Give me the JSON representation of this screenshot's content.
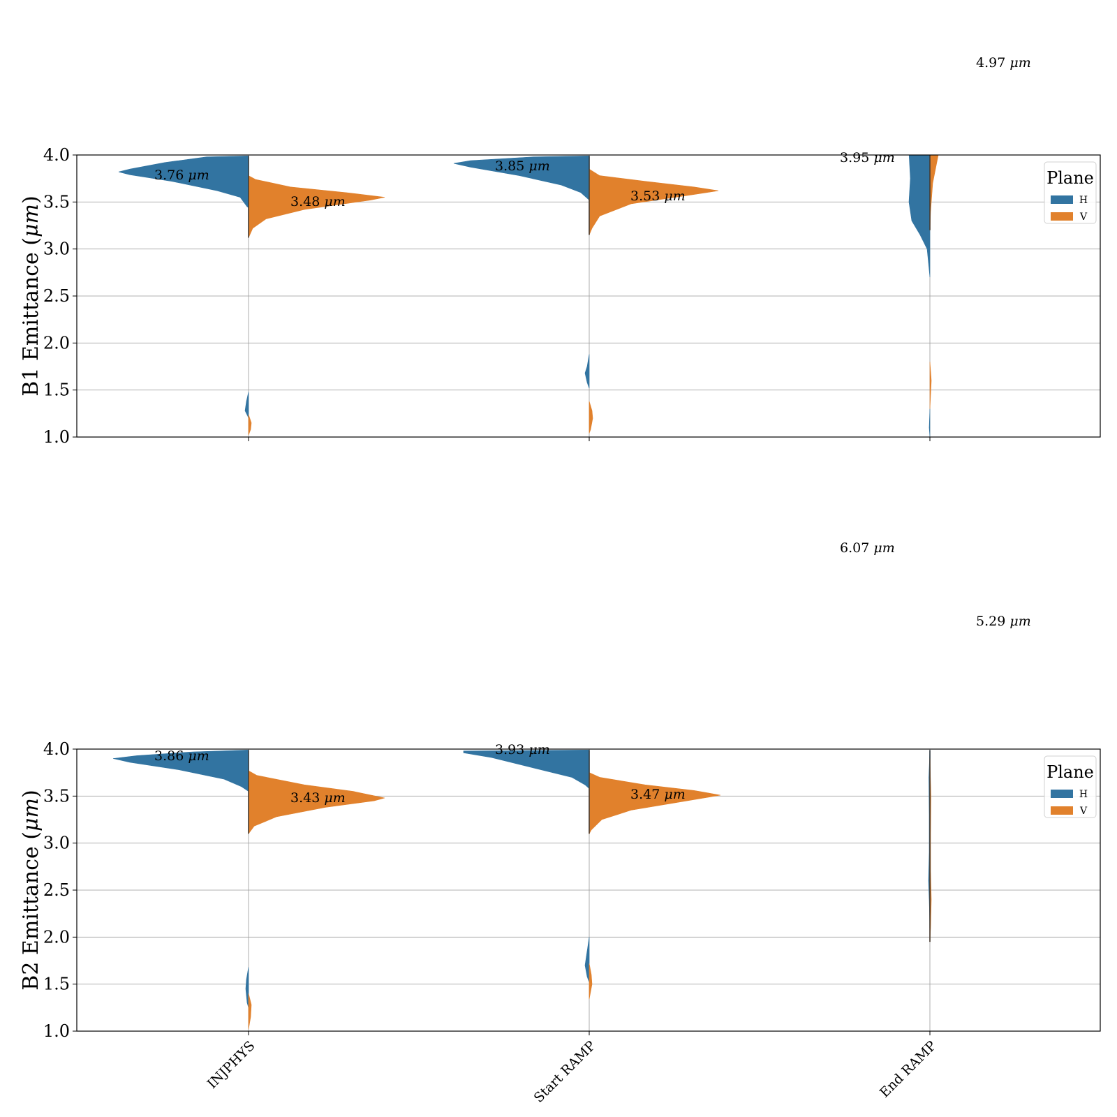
{
  "colors": {
    "H": "#3274a1",
    "V": "#e1812c",
    "grid": "#b0b0b0",
    "axis": "#000000"
  },
  "chart_data": [
    {
      "type": "violin",
      "ylabel": "B1 Emittance (μm)",
      "ylim": [
        1.0,
        4.0
      ],
      "yticks": [
        "1.0",
        "1.5",
        "2.0",
        "2.5",
        "3.0",
        "3.5",
        "4.0"
      ],
      "grid": true,
      "categories": [
        "INJPHYS",
        "Start RAMP",
        "End RAMP"
      ],
      "legend": {
        "title": "Plane",
        "position": "top-right",
        "entries": [
          "H",
          "V"
        ]
      },
      "series": [
        {
          "name": "H",
          "medians": [
            3.76,
            3.85,
            3.95
          ]
        },
        {
          "name": "V",
          "medians": [
            3.48,
            3.53,
            4.97
          ]
        }
      ],
      "annotations": [
        "3.76 μm",
        "3.48 μm",
        "3.85 μm",
        "3.53 μm",
        "3.95 μm",
        "4.97 μm"
      ]
    },
    {
      "type": "violin",
      "ylabel": "B2 Emittance (μm)",
      "ylim": [
        1.0,
        4.0
      ],
      "yticks": [
        "1.0",
        "1.5",
        "2.0",
        "2.5",
        "3.0",
        "3.5",
        "4.0"
      ],
      "grid": true,
      "categories": [
        "INJPHYS",
        "Start RAMP",
        "End RAMP"
      ],
      "legend": {
        "title": "Plane",
        "position": "top-right",
        "entries": [
          "H",
          "V"
        ]
      },
      "series": [
        {
          "name": "H",
          "medians": [
            3.86,
            3.93,
            6.07
          ]
        },
        {
          "name": "V",
          "medians": [
            3.43,
            3.47,
            5.29
          ]
        }
      ],
      "annotations": [
        "3.86 μm",
        "3.43 μm",
        "3.93 μm",
        "3.47 μm",
        "6.07 μm",
        "5.29 μm"
      ]
    }
  ]
}
